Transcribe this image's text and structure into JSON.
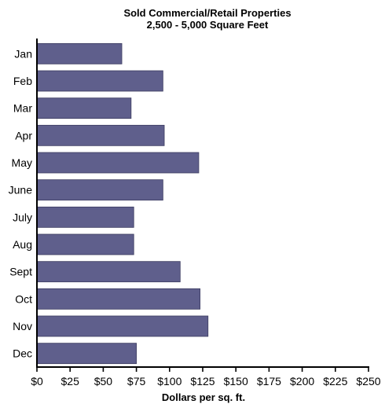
{
  "chart_data": {
    "type": "bar",
    "orientation": "horizontal",
    "title": "Sold Commercial/Retail Properties",
    "subtitle": "2,500 - 5,000 Square Feet",
    "xlabel": "Dollars per sq. ft.",
    "ylabel": "",
    "categories": [
      "Jan",
      "Feb",
      "Mar",
      "Apr",
      "May",
      "June",
      "July",
      "Aug",
      "Sept",
      "Oct",
      "Nov",
      "Dec"
    ],
    "values": [
      64,
      95,
      71,
      96,
      122,
      95,
      73,
      73,
      108,
      123,
      129,
      75
    ],
    "xlim": [
      0,
      250
    ],
    "x_ticks": [
      0,
      25,
      50,
      75,
      100,
      125,
      150,
      175,
      200,
      225,
      250
    ],
    "x_tick_labels": [
      "$0",
      "$25",
      "$50",
      "$75",
      "$100",
      "$125",
      "$150",
      "$175",
      "$200",
      "$225",
      "$250"
    ],
    "grid": false,
    "bar_color": "#5f5f8c",
    "bar_border_color": "#3c3c60"
  }
}
